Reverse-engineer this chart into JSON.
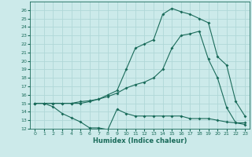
{
  "xlabel": "Humidex (Indice chaleur)",
  "bg_color": "#cceaea",
  "grid_color": "#b0d8d8",
  "line_color": "#1a6b5a",
  "xlim": [
    -0.5,
    23.5
  ],
  "ylim": [
    12,
    27
  ],
  "xticks": [
    0,
    1,
    2,
    3,
    4,
    5,
    6,
    7,
    8,
    9,
    10,
    11,
    12,
    13,
    14,
    15,
    16,
    17,
    18,
    19,
    20,
    21,
    22,
    23
  ],
  "yticks": [
    12,
    13,
    14,
    15,
    16,
    17,
    18,
    19,
    20,
    21,
    22,
    23,
    24,
    25,
    26
  ],
  "line1_x": [
    0,
    1,
    2,
    3,
    4,
    5,
    6,
    7,
    8,
    9,
    10,
    11,
    12,
    13,
    14,
    15,
    16,
    17,
    18,
    19,
    20,
    21,
    22,
    23
  ],
  "line1_y": [
    15.0,
    15.0,
    14.6,
    13.8,
    13.3,
    12.8,
    12.1,
    12.1,
    11.9,
    14.3,
    13.8,
    13.5,
    13.5,
    13.5,
    13.5,
    13.5,
    13.5,
    13.2,
    13.2,
    13.2,
    13.0,
    12.8,
    12.7,
    12.5
  ],
  "line2_x": [
    0,
    1,
    2,
    3,
    4,
    5,
    6,
    7,
    8,
    9,
    10,
    11,
    12,
    13,
    14,
    15,
    16,
    17,
    18,
    19,
    20,
    21,
    22,
    23
  ],
  "line2_y": [
    15.0,
    15.0,
    15.0,
    15.0,
    15.0,
    15.2,
    15.3,
    15.5,
    15.8,
    16.2,
    16.8,
    17.2,
    17.5,
    18.0,
    19.0,
    21.5,
    23.0,
    23.2,
    23.5,
    20.2,
    18.0,
    14.5,
    12.7,
    12.7
  ],
  "line3_x": [
    0,
    1,
    2,
    3,
    4,
    5,
    6,
    7,
    8,
    9,
    10,
    11,
    12,
    13,
    14,
    15,
    16,
    17,
    18,
    19,
    20,
    21,
    22,
    23
  ],
  "line3_y": [
    15.0,
    15.0,
    15.0,
    15.0,
    15.0,
    15.0,
    15.2,
    15.5,
    16.0,
    16.5,
    19.0,
    21.5,
    22.0,
    22.5,
    25.5,
    26.2,
    25.8,
    25.5,
    25.0,
    24.5,
    20.5,
    19.5,
    15.2,
    13.5
  ]
}
